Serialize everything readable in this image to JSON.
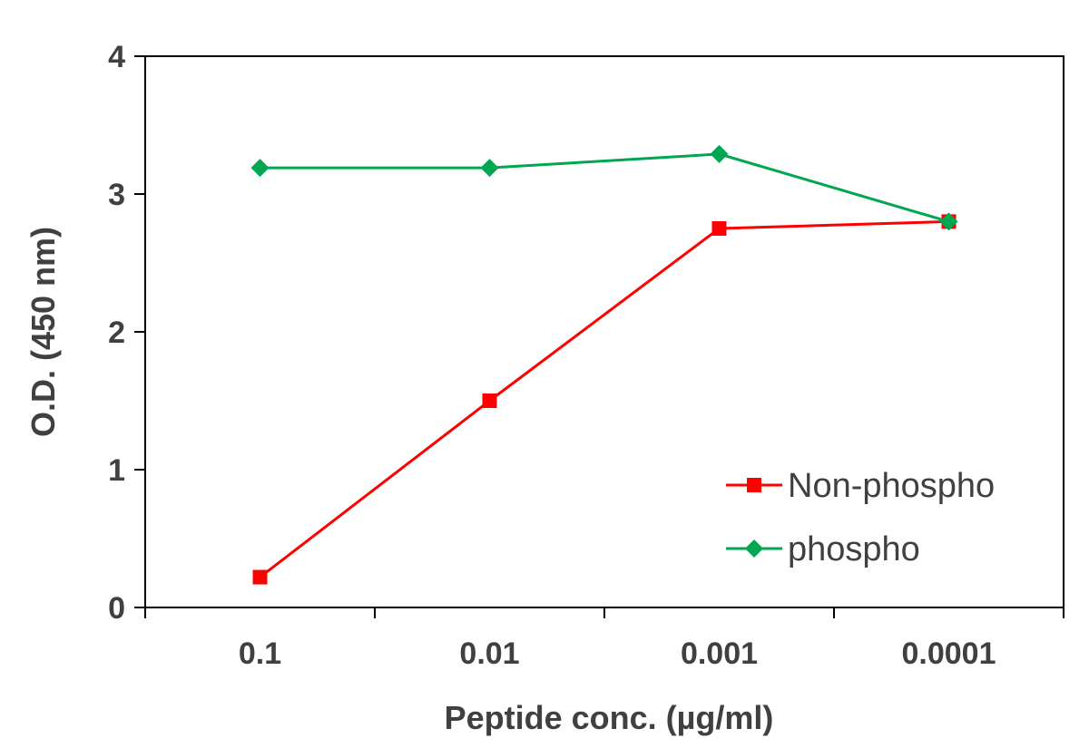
{
  "chart_data": {
    "type": "line",
    "title": "",
    "xlabel": "Peptide conc. (µg/ml)",
    "ylabel": "O.D. (450 nm)",
    "categories": [
      "0.1",
      "0.01",
      "0.001",
      "0.0001"
    ],
    "ylim": [
      0,
      4
    ],
    "yticks": [
      "0",
      "1",
      "2",
      "3",
      "4"
    ],
    "grid": false,
    "legend_position": "bottom-right",
    "series": [
      {
        "name": "Non-phospho",
        "values": [
          0.22,
          1.5,
          2.75,
          2.8
        ],
        "color": "#ff0000",
        "marker": "square"
      },
      {
        "name": "phospho",
        "values": [
          3.19,
          3.19,
          3.29,
          2.8
        ],
        "color": "#00a650",
        "marker": "diamond"
      }
    ]
  }
}
